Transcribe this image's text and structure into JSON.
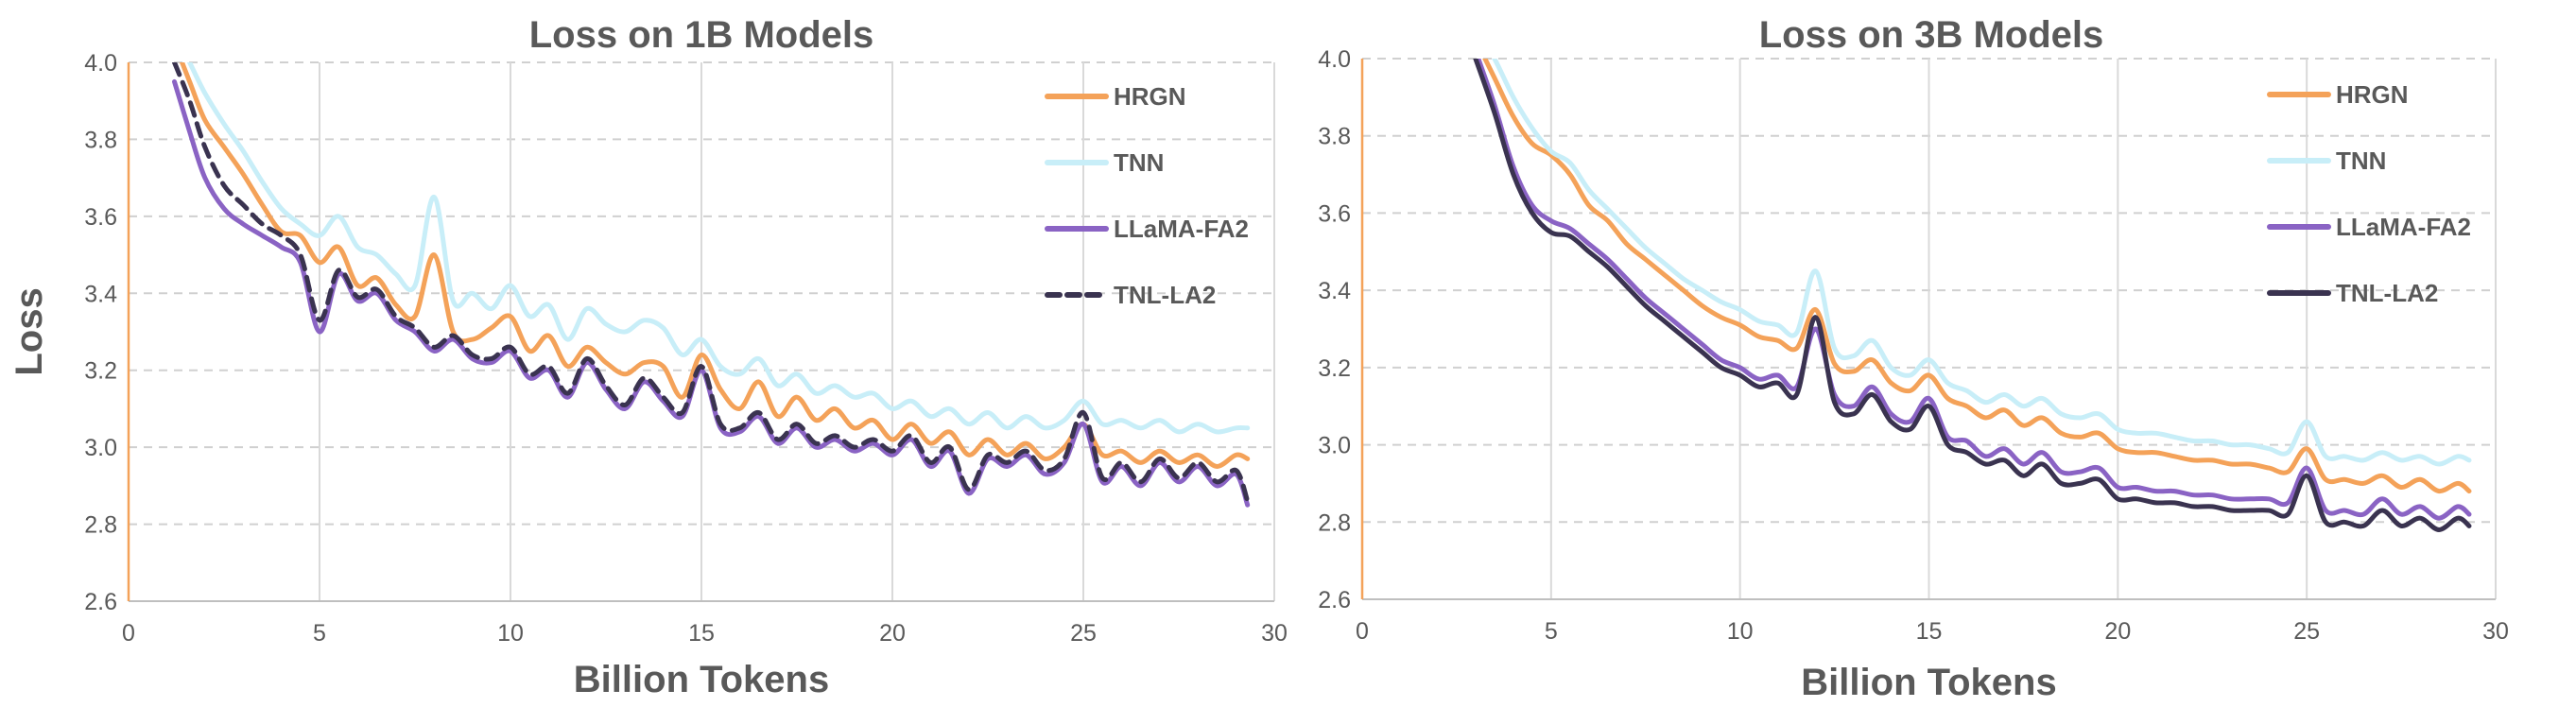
{
  "colors": {
    "HRGN": "#f4a259",
    "TNN": "#c8eef8",
    "LLaMA-FA2": "#8a63c4",
    "TNL-LA2": "#3a3350",
    "grid_h": "#d0d0d0",
    "grid_v": "#d9d9d9",
    "y_axis": "#f4a259",
    "x_axis": "#bfbfbf",
    "text": "#595959"
  },
  "chart_data": [
    {
      "type": "line",
      "title": "Loss on 1B Models",
      "xlabel": "Billion Tokens",
      "ylabel": "Loss",
      "xlim": [
        0,
        30
      ],
      "ylim": [
        2.6,
        4.0
      ],
      "xticks": [
        "0",
        "5",
        "10",
        "15",
        "20",
        "25",
        "30"
      ],
      "yticks": [
        "2.6",
        "2.8",
        "3.0",
        "3.2",
        "3.4",
        "3.6",
        "3.8",
        "4.0"
      ],
      "grid": "horizontal dashed, vertical solid",
      "legend": "top-right",
      "series": [
        {
          "name": "HRGN",
          "style": "solid",
          "x": [
            1.2,
            1.6,
            2.0,
            2.5,
            3.0,
            3.5,
            4.0,
            4.5,
            5.0,
            5.5,
            6.0,
            6.5,
            7.0,
            7.5,
            8.0,
            8.5,
            9.0,
            9.5,
            10.0,
            10.5,
            11.0,
            11.5,
            12.0,
            12.5,
            13.0,
            13.5,
            14.0,
            14.5,
            15.0,
            15.5,
            16.0,
            16.5,
            17.0,
            17.5,
            18.0,
            18.5,
            19.0,
            19.5,
            20.0,
            20.5,
            21.0,
            21.5,
            22.0,
            22.5,
            23.0,
            23.5,
            24.0,
            24.5,
            25.0,
            25.5,
            26.0,
            26.5,
            27.0,
            27.5,
            28.0,
            28.5,
            29.0,
            29.3
          ],
          "y": [
            4.05,
            3.95,
            3.85,
            3.78,
            3.71,
            3.63,
            3.56,
            3.55,
            3.48,
            3.52,
            3.42,
            3.44,
            3.37,
            3.34,
            3.5,
            3.3,
            3.28,
            3.31,
            3.34,
            3.25,
            3.29,
            3.21,
            3.26,
            3.22,
            3.19,
            3.22,
            3.21,
            3.13,
            3.24,
            3.15,
            3.1,
            3.17,
            3.08,
            3.13,
            3.07,
            3.1,
            3.05,
            3.07,
            3.02,
            3.06,
            3.01,
            3.04,
            2.98,
            3.02,
            2.98,
            3.01,
            2.97,
            3.0,
            3.06,
            2.98,
            2.99,
            2.96,
            2.99,
            2.96,
            2.98,
            2.95,
            2.98,
            2.97
          ]
        },
        {
          "name": "TNN",
          "style": "solid",
          "x": [
            1.2,
            1.6,
            2.0,
            2.5,
            3.0,
            3.5,
            4.0,
            4.5,
            5.0,
            5.5,
            6.0,
            6.5,
            7.0,
            7.5,
            8.0,
            8.5,
            9.0,
            9.5,
            10.0,
            10.5,
            11.0,
            11.5,
            12.0,
            12.5,
            13.0,
            13.5,
            14.0,
            14.5,
            15.0,
            15.5,
            16.0,
            16.5,
            17.0,
            17.5,
            18.0,
            18.5,
            19.0,
            19.5,
            20.0,
            20.5,
            21.0,
            21.5,
            22.0,
            22.5,
            23.0,
            23.5,
            24.0,
            24.5,
            25.0,
            25.5,
            26.0,
            26.5,
            27.0,
            27.5,
            28.0,
            28.5,
            29.0,
            29.3
          ],
          "y": [
            4.08,
            4.0,
            3.92,
            3.84,
            3.77,
            3.69,
            3.62,
            3.58,
            3.55,
            3.6,
            3.52,
            3.5,
            3.45,
            3.42,
            3.65,
            3.38,
            3.4,
            3.36,
            3.42,
            3.34,
            3.37,
            3.28,
            3.36,
            3.32,
            3.3,
            3.33,
            3.31,
            3.24,
            3.28,
            3.21,
            3.19,
            3.23,
            3.16,
            3.19,
            3.14,
            3.16,
            3.13,
            3.14,
            3.1,
            3.12,
            3.08,
            3.1,
            3.06,
            3.09,
            3.05,
            3.08,
            3.05,
            3.07,
            3.12,
            3.06,
            3.07,
            3.05,
            3.07,
            3.04,
            3.06,
            3.04,
            3.05,
            3.05
          ]
        },
        {
          "name": "LLaMA-FA2",
          "style": "solid",
          "x": [
            1.2,
            1.6,
            2.0,
            2.5,
            3.0,
            3.5,
            4.0,
            4.5,
            5.0,
            5.5,
            6.0,
            6.5,
            7.0,
            7.5,
            8.0,
            8.5,
            9.0,
            9.5,
            10.0,
            10.5,
            11.0,
            11.5,
            12.0,
            12.5,
            13.0,
            13.5,
            14.0,
            14.5,
            15.0,
            15.5,
            16.0,
            16.5,
            17.0,
            17.5,
            18.0,
            18.5,
            19.0,
            19.5,
            20.0,
            20.5,
            21.0,
            21.5,
            22.0,
            22.5,
            23.0,
            23.5,
            24.0,
            24.5,
            25.0,
            25.5,
            26.0,
            26.5,
            27.0,
            27.5,
            28.0,
            28.5,
            29.0,
            29.3
          ],
          "y": [
            3.95,
            3.82,
            3.7,
            3.62,
            3.58,
            3.55,
            3.52,
            3.48,
            3.3,
            3.45,
            3.38,
            3.4,
            3.33,
            3.3,
            3.25,
            3.28,
            3.23,
            3.22,
            3.25,
            3.18,
            3.2,
            3.13,
            3.22,
            3.15,
            3.1,
            3.17,
            3.12,
            3.08,
            3.2,
            3.05,
            3.04,
            3.08,
            3.01,
            3.05,
            3.0,
            3.02,
            2.99,
            3.01,
            2.98,
            3.02,
            2.95,
            2.99,
            2.88,
            2.97,
            2.95,
            2.98,
            2.93,
            2.96,
            3.06,
            2.91,
            2.95,
            2.9,
            2.96,
            2.91,
            2.95,
            2.9,
            2.93,
            2.85
          ]
        },
        {
          "name": "TNL-LA2",
          "style": "dashed",
          "x": [
            1.2,
            1.6,
            2.0,
            2.5,
            3.0,
            3.5,
            4.0,
            4.5,
            5.0,
            5.5,
            6.0,
            6.5,
            7.0,
            7.5,
            8.0,
            8.5,
            9.0,
            9.5,
            10.0,
            10.5,
            11.0,
            11.5,
            12.0,
            12.5,
            13.0,
            13.5,
            14.0,
            14.5,
            15.0,
            15.5,
            16.0,
            16.5,
            17.0,
            17.5,
            18.0,
            18.5,
            19.0,
            19.5,
            20.0,
            20.5,
            21.0,
            21.5,
            22.0,
            22.5,
            23.0,
            23.5,
            24.0,
            24.5,
            25.0,
            25.5,
            26.0,
            26.5,
            27.0,
            27.5,
            28.0,
            28.5,
            29.0,
            29.3
          ],
          "y": [
            4.0,
            3.9,
            3.78,
            3.68,
            3.63,
            3.58,
            3.55,
            3.5,
            3.33,
            3.46,
            3.39,
            3.41,
            3.34,
            3.31,
            3.26,
            3.29,
            3.24,
            3.23,
            3.26,
            3.19,
            3.21,
            3.14,
            3.23,
            3.16,
            3.11,
            3.18,
            3.13,
            3.09,
            3.21,
            3.06,
            3.05,
            3.09,
            3.02,
            3.06,
            3.01,
            3.03,
            3.0,
            3.02,
            2.99,
            3.03,
            2.96,
            3.0,
            2.89,
            2.98,
            2.96,
            2.99,
            2.94,
            2.97,
            3.09,
            2.92,
            2.96,
            2.91,
            2.97,
            2.92,
            2.96,
            2.91,
            2.94,
            2.86
          ]
        }
      ]
    },
    {
      "type": "line",
      "title": "Loss on 3B Models",
      "xlabel": "Billion Tokens",
      "ylabel": "",
      "xlim": [
        0,
        30
      ],
      "ylim": [
        2.6,
        4.0
      ],
      "xticks": [
        "0",
        "5",
        "10",
        "15",
        "20",
        "25",
        "30"
      ],
      "yticks": [
        "2.6",
        "2.8",
        "3.0",
        "3.2",
        "3.4",
        "3.6",
        "3.8",
        "4.0"
      ],
      "grid": "horizontal dashed, vertical solid",
      "legend": "top-right",
      "series": [
        {
          "name": "HRGN",
          "style": "solid",
          "x": [
            3.0,
            3.5,
            4.0,
            4.5,
            5.0,
            5.5,
            6.0,
            6.5,
            7.0,
            7.5,
            8.0,
            8.5,
            9.0,
            9.5,
            10.0,
            10.5,
            11.0,
            11.5,
            12.0,
            12.5,
            13.0,
            13.5,
            14.0,
            14.5,
            15.0,
            15.5,
            16.0,
            16.5,
            17.0,
            17.5,
            18.0,
            18.5,
            19.0,
            19.5,
            20.0,
            20.5,
            21.0,
            21.5,
            22.0,
            22.5,
            23.0,
            23.5,
            24.0,
            24.5,
            25.0,
            25.5,
            26.0,
            26.5,
            27.0,
            27.5,
            28.0,
            28.5,
            29.0,
            29.3
          ],
          "y": [
            4.05,
            3.95,
            3.85,
            3.78,
            3.75,
            3.7,
            3.62,
            3.58,
            3.52,
            3.48,
            3.44,
            3.4,
            3.36,
            3.33,
            3.31,
            3.28,
            3.27,
            3.25,
            3.35,
            3.21,
            3.19,
            3.22,
            3.16,
            3.14,
            3.18,
            3.12,
            3.1,
            3.07,
            3.09,
            3.05,
            3.07,
            3.03,
            3.02,
            3.03,
            2.99,
            2.98,
            2.98,
            2.97,
            2.96,
            2.96,
            2.95,
            2.95,
            2.94,
            2.93,
            2.99,
            2.91,
            2.91,
            2.9,
            2.92,
            2.89,
            2.91,
            2.88,
            2.9,
            2.88
          ]
        },
        {
          "name": "TNN",
          "style": "solid",
          "x": [
            3.0,
            3.5,
            4.0,
            4.5,
            5.0,
            5.5,
            6.0,
            6.5,
            7.0,
            7.5,
            8.0,
            8.5,
            9.0,
            9.5,
            10.0,
            10.5,
            11.0,
            11.5,
            12.0,
            12.5,
            13.0,
            13.5,
            14.0,
            14.5,
            15.0,
            15.5,
            16.0,
            16.5,
            17.0,
            17.5,
            18.0,
            18.5,
            19.0,
            19.5,
            20.0,
            20.5,
            21.0,
            21.5,
            22.0,
            22.5,
            23.0,
            23.5,
            24.0,
            24.5,
            25.0,
            25.5,
            26.0,
            26.5,
            27.0,
            27.5,
            28.0,
            28.5,
            29.0,
            29.3
          ],
          "y": [
            4.08,
            4.0,
            3.9,
            3.82,
            3.76,
            3.73,
            3.66,
            3.61,
            3.56,
            3.51,
            3.47,
            3.43,
            3.4,
            3.37,
            3.35,
            3.32,
            3.31,
            3.29,
            3.45,
            3.25,
            3.23,
            3.27,
            3.2,
            3.18,
            3.22,
            3.16,
            3.14,
            3.11,
            3.13,
            3.1,
            3.12,
            3.08,
            3.07,
            3.08,
            3.04,
            3.03,
            3.03,
            3.02,
            3.01,
            3.01,
            3.0,
            3.0,
            2.99,
            2.98,
            3.06,
            2.97,
            2.97,
            2.96,
            2.98,
            2.96,
            2.97,
            2.95,
            2.97,
            2.96
          ]
        },
        {
          "name": "LLaMA-FA2",
          "style": "solid",
          "x": [
            3.0,
            3.5,
            4.0,
            4.5,
            5.0,
            5.5,
            6.0,
            6.5,
            7.0,
            7.5,
            8.0,
            8.5,
            9.0,
            9.5,
            10.0,
            10.5,
            11.0,
            11.5,
            12.0,
            12.5,
            13.0,
            13.5,
            14.0,
            14.5,
            15.0,
            15.5,
            16.0,
            16.5,
            17.0,
            17.5,
            18.0,
            18.5,
            19.0,
            19.5,
            20.0,
            20.5,
            21.0,
            21.5,
            22.0,
            22.5,
            23.0,
            23.5,
            24.0,
            24.5,
            25.0,
            25.5,
            26.0,
            26.5,
            27.0,
            27.5,
            28.0,
            28.5,
            29.0,
            29.3
          ],
          "y": [
            4.02,
            3.88,
            3.72,
            3.62,
            3.58,
            3.56,
            3.52,
            3.48,
            3.43,
            3.38,
            3.34,
            3.3,
            3.26,
            3.22,
            3.2,
            3.17,
            3.18,
            3.15,
            3.3,
            3.13,
            3.1,
            3.15,
            3.08,
            3.06,
            3.12,
            3.02,
            3.01,
            2.97,
            2.99,
            2.95,
            2.98,
            2.93,
            2.93,
            2.94,
            2.89,
            2.89,
            2.88,
            2.88,
            2.87,
            2.87,
            2.86,
            2.86,
            2.86,
            2.85,
            2.94,
            2.83,
            2.83,
            2.82,
            2.86,
            2.82,
            2.84,
            2.81,
            2.84,
            2.82
          ]
        },
        {
          "name": "TNL-LA2",
          "style": "solid",
          "x": [
            3.0,
            3.5,
            4.0,
            4.5,
            5.0,
            5.5,
            6.0,
            6.5,
            7.0,
            7.5,
            8.0,
            8.5,
            9.0,
            9.5,
            10.0,
            10.5,
            11.0,
            11.5,
            12.0,
            12.5,
            13.0,
            13.5,
            14.0,
            14.5,
            15.0,
            15.5,
            16.0,
            16.5,
            17.0,
            17.5,
            18.0,
            18.5,
            19.0,
            19.5,
            20.0,
            20.5,
            21.0,
            21.5,
            22.0,
            22.5,
            23.0,
            23.5,
            24.0,
            24.5,
            25.0,
            25.5,
            26.0,
            26.5,
            27.0,
            27.5,
            28.0,
            28.5,
            29.0,
            29.3
          ],
          "y": [
            4.0,
            3.86,
            3.7,
            3.6,
            3.55,
            3.54,
            3.5,
            3.46,
            3.41,
            3.36,
            3.32,
            3.28,
            3.24,
            3.2,
            3.18,
            3.15,
            3.16,
            3.13,
            3.33,
            3.11,
            3.08,
            3.13,
            3.06,
            3.04,
            3.1,
            3.0,
            2.98,
            2.95,
            2.96,
            2.92,
            2.95,
            2.9,
            2.9,
            2.91,
            2.86,
            2.86,
            2.85,
            2.85,
            2.84,
            2.84,
            2.83,
            2.83,
            2.83,
            2.82,
            2.92,
            2.8,
            2.8,
            2.79,
            2.83,
            2.79,
            2.81,
            2.78,
            2.81,
            2.79
          ]
        }
      ]
    }
  ]
}
